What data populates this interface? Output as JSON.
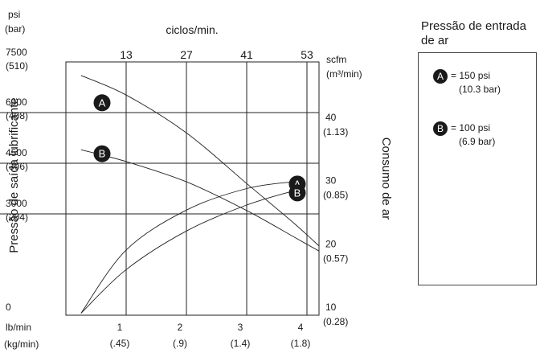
{
  "chart_data": {
    "type": "line",
    "left_axis": {
      "unit_top": "psi",
      "unit_bottom": "(bar)",
      "title": "Pressão de saída lubrificante",
      "ticks": [
        {
          "value": 0,
          "label": "0",
          "sublabel": ""
        },
        {
          "value": 3000,
          "label": "3000",
          "sublabel": "(204)"
        },
        {
          "value": 4500,
          "label": "4500",
          "sublabel": "(306)"
        },
        {
          "value": 6000,
          "label": "6000",
          "sublabel": "(408)"
        },
        {
          "value": 7500,
          "label": "7500",
          "sublabel": "(510)"
        }
      ]
    },
    "right_axis": {
      "unit_top": "scfm",
      "unit_bottom": "(m³/min)",
      "title": "Consumo de ar",
      "ticks": [
        {
          "value": 10,
          "label": "10",
          "sublabel": "(0.28)"
        },
        {
          "value": 20,
          "label": "20",
          "sublabel": "(0.57)"
        },
        {
          "value": 30,
          "label": "30",
          "sublabel": "(0.85)"
        },
        {
          "value": 40,
          "label": "40",
          "sublabel": "(1.13)"
        }
      ]
    },
    "top_axis": {
      "title": "ciclos/min.",
      "ticks": [
        {
          "value": 1,
          "label": "13"
        },
        {
          "value": 2,
          "label": "27"
        },
        {
          "value": 3,
          "label": "41"
        },
        {
          "value": 4,
          "label": "53"
        }
      ]
    },
    "bottom_axis": {
      "unit_top": "lb/min",
      "unit_bottom": "(kg/min)",
      "ticks": [
        {
          "value": 1,
          "label": "1",
          "sublabel": "(.45)"
        },
        {
          "value": 2,
          "label": "2",
          "sublabel": "(.9)"
        },
        {
          "value": 3,
          "label": "3",
          "sublabel": "(1.4)"
        },
        {
          "value": 4,
          "label": "4",
          "sublabel": "(1.8)"
        }
      ]
    },
    "xlim": [
      0,
      4.2
    ],
    "ylim_left": [
      0,
      7500
    ],
    "ylim_right": [
      10,
      50
    ],
    "grid": true,
    "series": [
      {
        "marker": "A",
        "axis": "left",
        "x": [
          0.25,
          1,
          2,
          3,
          3.8,
          4.2
        ],
        "y": [
          7100,
          6520,
          5400,
          3900,
          2700,
          2050
        ]
      },
      {
        "marker": "B",
        "axis": "left",
        "x": [
          0.25,
          1,
          2,
          3,
          3.8,
          4.2
        ],
        "y": [
          4900,
          4550,
          3950,
          3100,
          2300,
          1900
        ]
      },
      {
        "marker": "A",
        "axis": "right",
        "x": [
          0.25,
          1,
          2,
          3,
          3.8
        ],
        "y": [
          10.3,
          20.3,
          26.6,
          30.0,
          31.1
        ]
      },
      {
        "marker": "B",
        "axis": "right",
        "x": [
          0.25,
          1,
          2,
          3,
          3.8
        ],
        "y": [
          10.3,
          17.2,
          23.3,
          27.4,
          29.7
        ]
      }
    ]
  },
  "legend": {
    "title": "Pressão de entrada\nde ar",
    "entries": [
      {
        "marker": "A",
        "text": "= 150 psi",
        "subtext": "(10.3 bar)"
      },
      {
        "marker": "B",
        "text": "= 100 psi",
        "subtext": "(6.9 bar)"
      }
    ]
  }
}
